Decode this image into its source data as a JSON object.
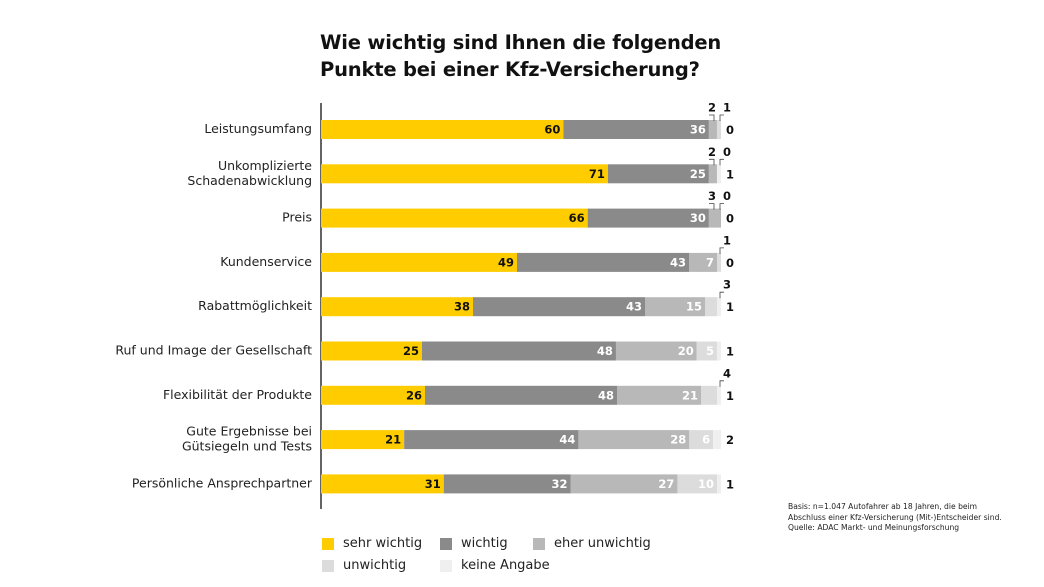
{
  "title_lines": [
    "Wie wichtig sind Ihnen die folgenden",
    "Punkte bei einer Kfz-Versicherung?"
  ],
  "colors": {
    "sehr_wichtig": "#ffcc00",
    "wichtig": "#8a8a8a",
    "eher_unwichtig": "#b8b8b8",
    "unwichtig": "#dcdcdc",
    "keine_angabe": "#efefef"
  },
  "chart_data": {
    "type": "bar",
    "orientation": "horizontal",
    "stacked": true,
    "categories": [
      [
        "Leistungsumfang"
      ],
      [
        "Unkomplizierte",
        "Schadenabwicklung"
      ],
      [
        "Preis"
      ],
      [
        "Kundenservice"
      ],
      [
        "Rabattmöglichkeit"
      ],
      [
        "Ruf und Image der Gesellschaft"
      ],
      [
        "Flexibilität der Produkte"
      ],
      [
        "Gute Ergebnisse bei",
        "Gütsiegeln und Tests"
      ],
      [
        "Persönliche Ansprechpartner"
      ]
    ],
    "series": [
      {
        "name": "sehr wichtig",
        "values": [
          60,
          71,
          66,
          49,
          38,
          25,
          26,
          21,
          31
        ]
      },
      {
        "name": "wichtig",
        "values": [
          36,
          25,
          30,
          43,
          43,
          48,
          48,
          44,
          32
        ]
      },
      {
        "name": "eher unwichtig",
        "values": [
          2,
          2,
          3,
          7,
          15,
          20,
          21,
          28,
          27
        ]
      },
      {
        "name": "unwichtig",
        "values": [
          1,
          0,
          0,
          1,
          3,
          5,
          4,
          6,
          10
        ]
      },
      {
        "name": "keine Angabe",
        "values": [
          0,
          1,
          0,
          0,
          1,
          1,
          1,
          2,
          1
        ]
      }
    ],
    "xlim": [
      0,
      100
    ],
    "legend_position": "bottom"
  },
  "note_lines": [
    "Basis: n=1.047 Autofahrer ab 18 Jahren, die beim",
    "Abschluss einer Kfz-Versicherung (Mit-)Entscheider sind.",
    "Quelle: ADAC Markt- und Meinungsforschung"
  ],
  "legend": [
    {
      "label": "sehr wichtig",
      "color": "#ffcc00"
    },
    {
      "label": "wichtig",
      "color": "#8a8a8a"
    },
    {
      "label": "eher unwichtig",
      "color": "#b8b8b8"
    },
    {
      "label": "unwichtig",
      "color": "#dcdcdc"
    },
    {
      "label": "keine Angabe",
      "color": "#efefef"
    }
  ]
}
